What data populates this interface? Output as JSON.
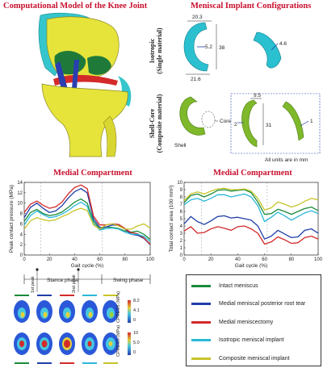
{
  "titles": {
    "knee_model": "Computational Model of the Knee Joint",
    "implant_configs": "Meniscal Implant Configurations",
    "medial_left": "Medial Compartment",
    "medial_right": "Medial Compartment"
  },
  "implants": {
    "isotropic_label_line1": "Isotropic",
    "isotropic_label_line2": "(Single material)",
    "shellcore_label_line1": "Shell-Core",
    "shellcore_label_line2": "(Composite material)",
    "dim_20_3": "20.3",
    "dim_5_2": "5.2",
    "dim_38": "38",
    "dim_21_6": "21.6",
    "dim_4_6": "4.6",
    "dim_9_5": "9.5",
    "dim_2": "2",
    "dim_31": "31",
    "dim_1": "1",
    "core_label": "Core",
    "shell_label": "Shell",
    "units_note": "All units are in mm"
  },
  "phases": {
    "peak1": "1st peak",
    "peak2": "2nd peak",
    "stance": "Stance phase",
    "swing": "Swing phase"
  },
  "cpress": {
    "label": "CPRESS (MPa)",
    "scale1": [
      "8.2",
      "4.1",
      "0"
    ],
    "scale2": [
      "10",
      "5.0",
      "0"
    ]
  },
  "legend": {
    "items": [
      {
        "label": "Intact meniscus",
        "color": "#1a8a3a"
      },
      {
        "label": "Medial meniscal posterior root tear",
        "color": "#1f3ea8"
      },
      {
        "label": "Medial meniscectomy",
        "color": "#d42a2a"
      },
      {
        "label": "Isotropic meniscal implant",
        "color": "#2bb8d8"
      },
      {
        "label": "Composite meniscal implant",
        "color": "#c7c42a"
      }
    ]
  },
  "chart_data": [
    {
      "type": "line",
      "title": "Medial Compartment",
      "xlabel": "Gait cycle (%)",
      "ylabel": "Peak contact pressure (MPa)",
      "xlim": [
        0,
        100
      ],
      "ylim": [
        0,
        14
      ],
      "xticks": [
        0,
        20,
        40,
        60,
        80,
        100
      ],
      "yticks": [
        0,
        2,
        4,
        6,
        8,
        10,
        12,
        14
      ],
      "x": [
        0,
        5,
        10,
        15,
        20,
        25,
        30,
        35,
        40,
        45,
        50,
        55,
        60,
        65,
        70,
        75,
        80,
        85,
        90,
        95,
        100
      ],
      "series": [
        {
          "name": "Intact meniscus",
          "color": "#1a8a3a",
          "values": [
            6.5,
            8.2,
            8.8,
            8.0,
            7.6,
            7.8,
            8.3,
            9.2,
            10.2,
            10.8,
            10.0,
            6.5,
            5.0,
            5.4,
            5.3,
            5.1,
            4.6,
            4.4,
            4.6,
            4.0,
            3.0
          ]
        },
        {
          "name": "Medial meniscal posterior root tear",
          "color": "#1f3ea8",
          "values": [
            7.2,
            9.2,
            10.0,
            9.0,
            8.2,
            8.5,
            9.5,
            11.0,
            12.2,
            12.8,
            12.0,
            7.0,
            5.3,
            5.4,
            5.8,
            5.7,
            5.0,
            4.0,
            3.8,
            3.2,
            2.0
          ]
        },
        {
          "name": "Medial meniscectomy",
          "color": "#d42a2a",
          "values": [
            8.2,
            9.8,
            10.4,
            9.6,
            9.0,
            9.3,
            10.2,
            11.8,
            13.0,
            13.5,
            12.8,
            7.5,
            5.8,
            5.8,
            6.0,
            5.9,
            5.1,
            4.3,
            4.1,
            3.3,
            2.1
          ]
        },
        {
          "name": "Isotropic meniscal implant",
          "color": "#2bb8d8",
          "values": [
            5.8,
            7.6,
            8.5,
            7.8,
            7.2,
            7.4,
            7.9,
            8.6,
            9.5,
            10.2,
            9.4,
            6.0,
            4.8,
            5.1,
            5.2,
            5.0,
            4.4,
            4.0,
            4.0,
            3.6,
            2.6
          ]
        },
        {
          "name": "Composite meniscal implant",
          "color": "#c7c42a",
          "values": [
            5.0,
            6.6,
            7.2,
            6.8,
            6.6,
            6.8,
            7.4,
            7.9,
            8.6,
            9.0,
            8.6,
            5.8,
            5.0,
            5.8,
            6.0,
            5.6,
            5.0,
            5.0,
            5.6,
            6.0,
            5.2
          ]
        }
      ]
    },
    {
      "type": "line",
      "title": "Medial Compartment",
      "xlabel": "Gait cycle (%)",
      "ylabel": "Total contact area (100 mm²)",
      "xlim": [
        0,
        100
      ],
      "ylim": [
        0,
        10
      ],
      "xticks": [
        0,
        20,
        40,
        60,
        80,
        100
      ],
      "yticks": [
        0,
        1,
        2,
        3,
        4,
        5,
        6,
        7,
        8,
        9,
        10
      ],
      "x": [
        0,
        5,
        10,
        15,
        20,
        25,
        30,
        35,
        40,
        45,
        50,
        55,
        60,
        65,
        70,
        75,
        80,
        85,
        90,
        95,
        100
      ],
      "series": [
        {
          "name": "Intact meniscus",
          "color": "#1a8a3a",
          "values": [
            7.2,
            8.2,
            8.4,
            8.0,
            8.4,
            8.9,
            9.0,
            8.8,
            8.9,
            9.0,
            8.6,
            7.3,
            5.6,
            5.7,
            6.3,
            6.0,
            5.6,
            6.0,
            6.4,
            6.6,
            6.1
          ]
        },
        {
          "name": "Medial meniscal posterior root tear",
          "color": "#1f3ea8",
          "values": [
            4.3,
            5.3,
            4.6,
            4.2,
            4.7,
            5.3,
            5.4,
            5.1,
            5.2,
            5.0,
            4.8,
            4.0,
            2.2,
            2.6,
            3.4,
            2.9,
            2.4,
            2.5,
            3.4,
            3.6,
            3.0
          ]
        },
        {
          "name": "Medial meniscectomy",
          "color": "#d42a2a",
          "values": [
            3.3,
            3.9,
            3.0,
            3.1,
            3.6,
            3.9,
            3.7,
            3.4,
            3.9,
            4.0,
            3.6,
            3.0,
            1.5,
            1.8,
            2.5,
            2.1,
            1.6,
            1.7,
            2.4,
            2.6,
            2.2
          ]
        },
        {
          "name": "Isotropic meniscal implant",
          "color": "#2bb8d8",
          "values": [
            6.9,
            7.6,
            7.8,
            7.4,
            7.8,
            8.3,
            8.3,
            8.0,
            8.2,
            8.4,
            8.0,
            6.8,
            4.6,
            5.2,
            5.9,
            5.4,
            4.8,
            5.3,
            5.8,
            6.1,
            5.7
          ]
        },
        {
          "name": "Composite meniscal implant",
          "color": "#c7c42a",
          "values": [
            7.5,
            8.4,
            8.7,
            8.4,
            8.8,
            9.1,
            9.2,
            9.0,
            9.0,
            9.1,
            8.8,
            7.8,
            6.2,
            6.5,
            7.3,
            7.0,
            6.6,
            6.9,
            7.4,
            7.8,
            7.6
          ]
        }
      ]
    }
  ]
}
